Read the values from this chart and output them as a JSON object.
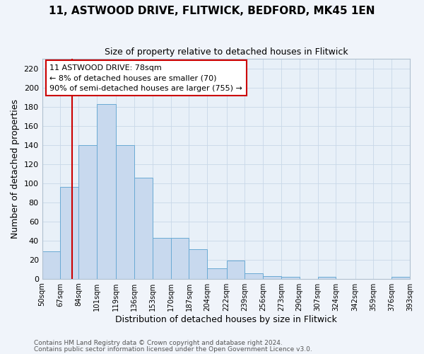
{
  "title": "11, ASTWOOD DRIVE, FLITWICK, BEDFORD, MK45 1EN",
  "subtitle": "Size of property relative to detached houses in Flitwick",
  "xlabel": "Distribution of detached houses by size in Flitwick",
  "ylabel": "Number of detached properties",
  "bar_edges": [
    50,
    67,
    84,
    101,
    119,
    136,
    153,
    170,
    187,
    204,
    222,
    239,
    256,
    273,
    290,
    307,
    324,
    342,
    359,
    376,
    393
  ],
  "bar_heights": [
    29,
    96,
    140,
    183,
    140,
    106,
    43,
    43,
    31,
    11,
    19,
    6,
    3,
    2,
    0,
    2,
    0,
    0,
    0,
    2
  ],
  "bar_color": "#c8d9ee",
  "bar_edgecolor": "#6aaad4",
  "vline_x": 78,
  "vline_color": "#cc0000",
  "ylim": [
    0,
    230
  ],
  "yticks": [
    0,
    20,
    40,
    60,
    80,
    100,
    120,
    140,
    160,
    180,
    200,
    220
  ],
  "xtick_labels": [
    "50sqm",
    "67sqm",
    "84sqm",
    "101sqm",
    "119sqm",
    "136sqm",
    "153sqm",
    "170sqm",
    "187sqm",
    "204sqm",
    "222sqm",
    "239sqm",
    "256sqm",
    "273sqm",
    "290sqm",
    "307sqm",
    "324sqm",
    "342sqm",
    "359sqm",
    "376sqm",
    "393sqm"
  ],
  "annotation_title": "11 ASTWOOD DRIVE: 78sqm",
  "annotation_line1": "← 8% of detached houses are smaller (70)",
  "annotation_line2": "90% of semi-detached houses are larger (755) →",
  "annotation_box_color": "#ffffff",
  "annotation_box_edgecolor": "#cc0000",
  "footer1": "Contains HM Land Registry data © Crown copyright and database right 2024.",
  "footer2": "Contains public sector information licensed under the Open Government Licence v3.0.",
  "grid_color": "#c8d8e8",
  "bg_color": "#e8f0f8",
  "fig_bg_color": "#f0f4fa"
}
